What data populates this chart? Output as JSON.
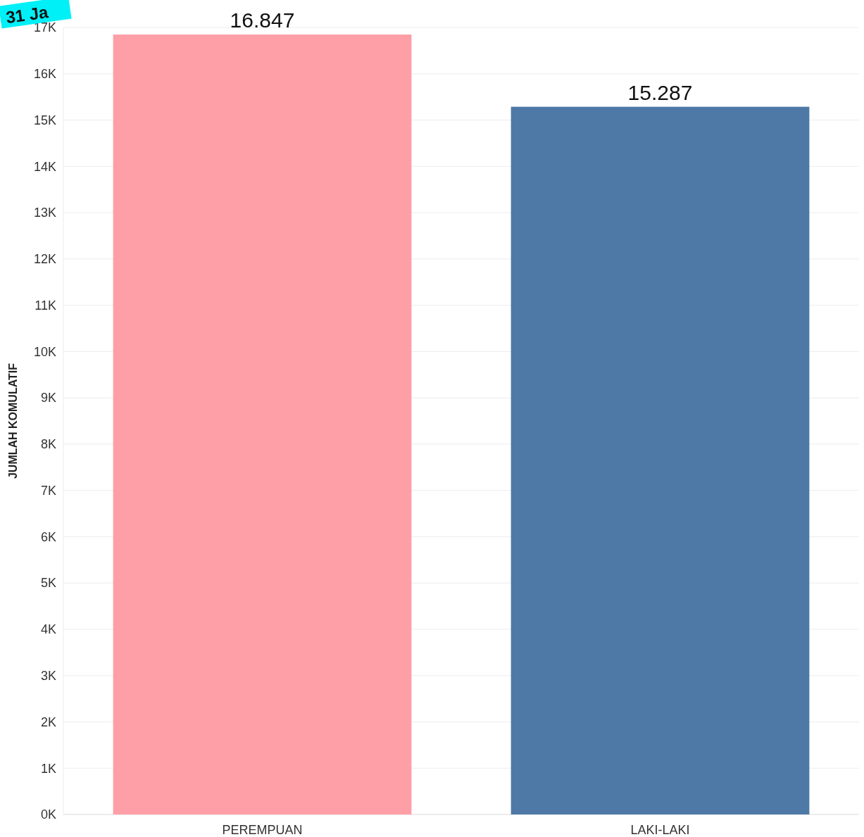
{
  "chart_data": {
    "type": "bar",
    "ylabel": "JUMLAH KOMULATIF",
    "categories": [
      "PEREMPUAN",
      "LAKI-LAKI"
    ],
    "values": [
      16847,
      15287
    ],
    "colors": [
      "#fe9ea6",
      "#4e79a7"
    ],
    "value_labels": [
      "16.847",
      "15.287"
    ],
    "ylim": [
      0,
      17000
    ],
    "yticks": [
      {
        "value": 0,
        "label": "0K"
      },
      {
        "value": 1000,
        "label": "1K"
      },
      {
        "value": 2000,
        "label": "2K"
      },
      {
        "value": 3000,
        "label": "3K"
      },
      {
        "value": 4000,
        "label": "4K"
      },
      {
        "value": 5000,
        "label": "5K"
      },
      {
        "value": 6000,
        "label": "6K"
      },
      {
        "value": 7000,
        "label": "7K"
      },
      {
        "value": 8000,
        "label": "8K"
      },
      {
        "value": 9000,
        "label": "9K"
      },
      {
        "value": 10000,
        "label": "10K"
      },
      {
        "value": 11000,
        "label": "11K"
      },
      {
        "value": 12000,
        "label": "12K"
      },
      {
        "value": 13000,
        "label": "13K"
      },
      {
        "value": 14000,
        "label": "14K"
      },
      {
        "value": 15000,
        "label": "15K"
      },
      {
        "value": 16000,
        "label": "16K"
      },
      {
        "value": 17000,
        "label": "17K"
      }
    ],
    "grid": "y",
    "annotations": [
      "31 Ja"
    ]
  }
}
